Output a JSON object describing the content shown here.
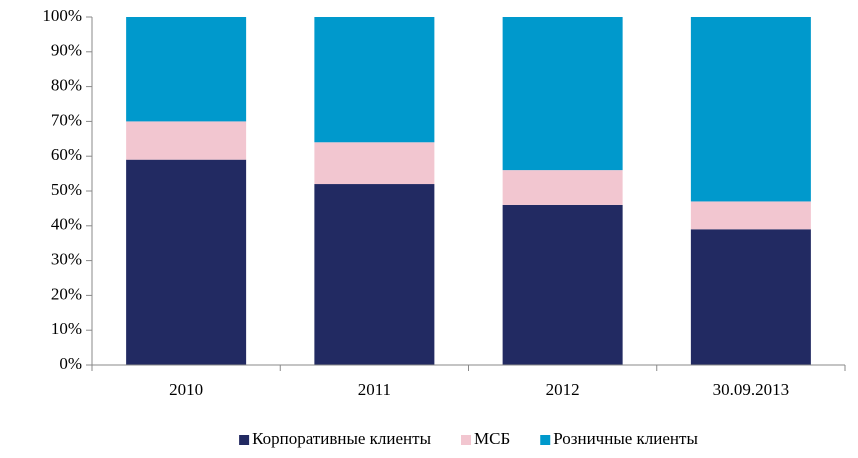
{
  "chart_data": {
    "type": "stacked_bar",
    "categories": [
      "2010",
      "2011",
      "2012",
      "30.09.2013"
    ],
    "series": [
      {
        "name": "Корпоративные клиенты",
        "color": "#222a62",
        "values": [
          59,
          52,
          46,
          39
        ]
      },
      {
        "name": "МСБ",
        "color": "#f2c6d0",
        "values": [
          11,
          12,
          10,
          8
        ]
      },
      {
        "name": "Розничные клиенты",
        "color": "#0099cc",
        "values": [
          30,
          36,
          44,
          53
        ]
      }
    ],
    "ylim": [
      0,
      100
    ],
    "yticks": [
      {
        "value": 0,
        "label": "0%"
      },
      {
        "value": 10,
        "label": "10%"
      },
      {
        "value": 20,
        "label": "20%"
      },
      {
        "value": 30,
        "label": "30%"
      },
      {
        "value": 40,
        "label": "40%"
      },
      {
        "value": 50,
        "label": "50%"
      },
      {
        "value": 60,
        "label": "60%"
      },
      {
        "value": 70,
        "label": "70%"
      },
      {
        "value": 80,
        "label": "80%"
      },
      {
        "value": 90,
        "label": "90%"
      },
      {
        "value": 100,
        "label": "100%"
      }
    ],
    "legend": "bottom"
  }
}
